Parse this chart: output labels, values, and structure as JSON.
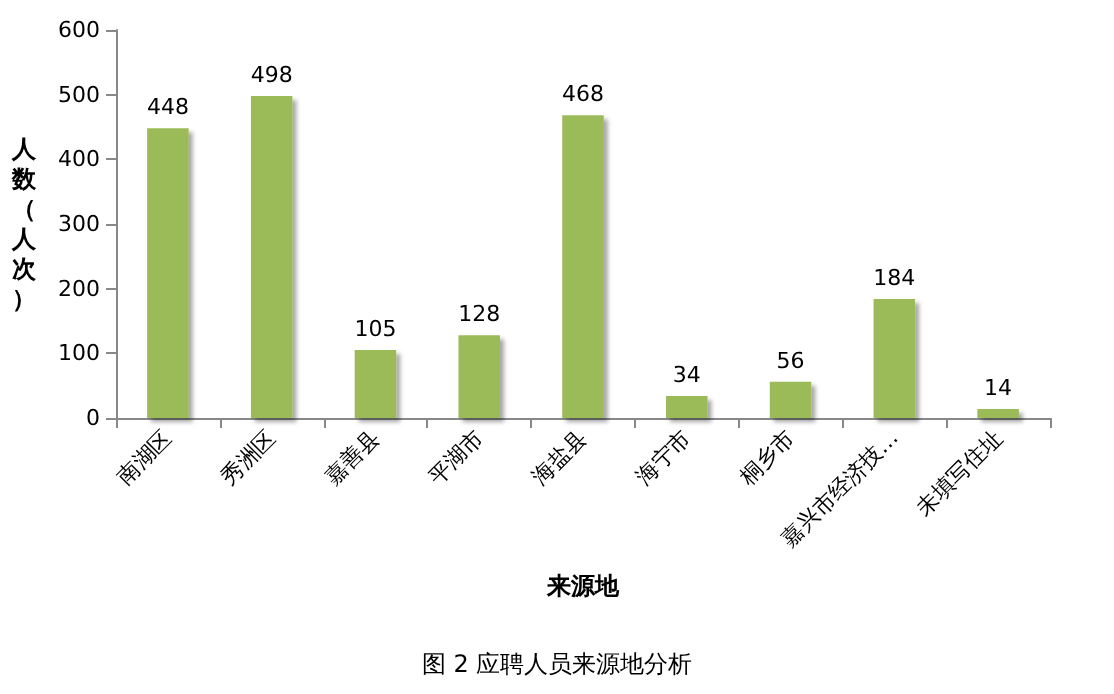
{
  "chart_data": {
    "type": "bar",
    "title": "图 2 应聘人员来源地分析",
    "xlabel": "来源地",
    "ylabel": "人数（人次）",
    "categories": [
      "南湖区",
      "秀洲区",
      "嘉善县",
      "平湖市",
      "海盐县",
      "海宁市",
      "桐乡市",
      "嘉兴市经济技…",
      "未填写住址"
    ],
    "values": [
      448,
      498,
      105,
      128,
      468,
      34,
      56,
      184,
      14
    ],
    "color": "#9bbb59",
    "ylim": [
      0,
      600
    ],
    "yticks": [
      0,
      100,
      200,
      300,
      400,
      500,
      600
    ],
    "grid": false,
    "data_labels": true
  }
}
